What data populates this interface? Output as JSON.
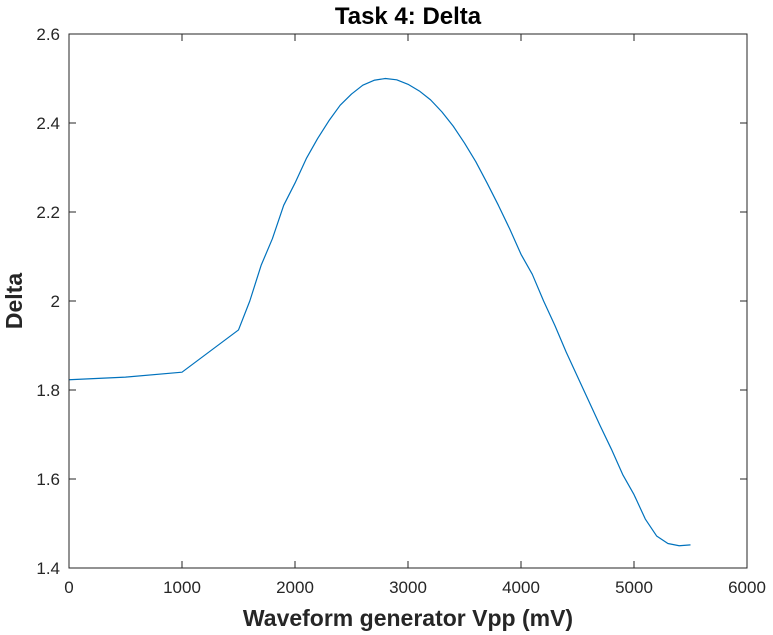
{
  "chart_data": {
    "type": "line",
    "title": "Task 4: Delta",
    "xlabel": "Waveform generator Vpp (mV)",
    "ylabel": "Delta",
    "xlim": [
      0,
      6000
    ],
    "ylim": [
      1.4,
      2.6
    ],
    "xticks": [
      0,
      1000,
      2000,
      3000,
      4000,
      5000,
      6000
    ],
    "xtick_labels": [
      "0",
      "1000",
      "2000",
      "3000",
      "4000",
      "5000",
      "6000"
    ],
    "yticks": [
      1.4,
      1.6,
      1.8,
      2.0,
      2.2,
      2.4,
      2.6
    ],
    "ytick_labels": [
      "1.4",
      "1.6",
      "1.8",
      "2",
      "2.2",
      "2.4",
      "2.6"
    ],
    "grid": false,
    "box": true,
    "series": [
      {
        "color": "#0072BD",
        "x": [
          0,
          500,
          1000,
          1500,
          1600,
          1700,
          1800,
          1900,
          2000,
          2100,
          2200,
          2300,
          2400,
          2500,
          2600,
          2700,
          2800,
          2900,
          3000,
          3100,
          3200,
          3300,
          3400,
          3500,
          3600,
          3700,
          3800,
          3900,
          4000,
          4100,
          4200,
          4300,
          4400,
          4500,
          4600,
          4700,
          4800,
          4900,
          5000,
          5100,
          5200,
          5300,
          5400,
          5500
        ],
        "y": [
          1.823,
          1.829,
          1.84,
          1.935,
          2.0,
          2.08,
          2.14,
          2.215,
          2.265,
          2.32,
          2.365,
          2.405,
          2.44,
          2.465,
          2.485,
          2.496,
          2.5,
          2.497,
          2.487,
          2.472,
          2.452,
          2.425,
          2.393,
          2.355,
          2.313,
          2.265,
          2.215,
          2.162,
          2.105,
          2.06,
          2.0,
          1.945,
          1.885,
          1.83,
          1.775,
          1.72,
          1.667,
          1.61,
          1.565,
          1.51,
          1.472,
          1.455,
          1.45,
          1.452
        ]
      }
    ]
  }
}
